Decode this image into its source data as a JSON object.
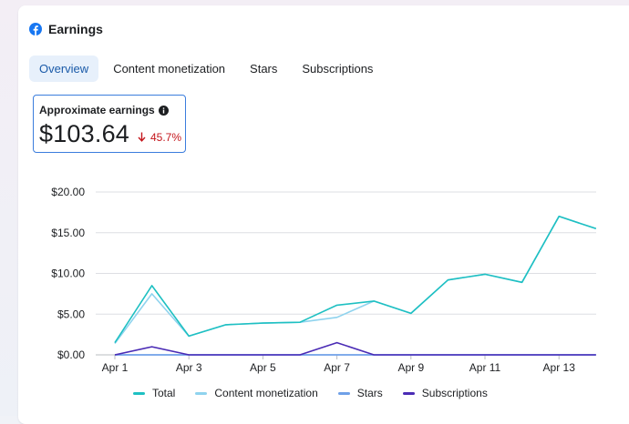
{
  "header": {
    "title": "Earnings",
    "icon": "facebook-logo-icon"
  },
  "tabs": [
    {
      "label": "Overview",
      "active": true
    },
    {
      "label": "Content monetization",
      "active": false
    },
    {
      "label": "Stars",
      "active": false
    },
    {
      "label": "Subscriptions",
      "active": false
    }
  ],
  "metric": {
    "label": "Approximate earnings",
    "info_icon": "info-icon",
    "value": "$103.64",
    "change": "45.7%",
    "change_direction": "down",
    "change_icon": "arrow-down-icon"
  },
  "colors": {
    "brand": "#1877f2",
    "tab_active_bg": "#e7f0fb",
    "tab_active_text": "#1a5aa8",
    "metric_border": "#3b7ddd",
    "negative": "#c4161c",
    "total": "#1ec0c2",
    "content_monetization": "#8fd3ee",
    "stars": "#6fa0e8",
    "subscriptions": "#4a2bb5",
    "grid": "#dddfe3"
  },
  "chart_data": {
    "type": "line",
    "title": "",
    "xlabel": "",
    "ylabel": "",
    "x": [
      "Apr 1",
      "Apr 2",
      "Apr 3",
      "Apr 4",
      "Apr 5",
      "Apr 6",
      "Apr 7",
      "Apr 8",
      "Apr 9",
      "Apr 10",
      "Apr 11",
      "Apr 12",
      "Apr 13",
      "Apr 14"
    ],
    "x_tick_labels": [
      "Apr 1",
      "Apr 3",
      "Apr 5",
      "Apr 7",
      "Apr 9",
      "Apr 11",
      "Apr 13"
    ],
    "y_ticks": [
      0,
      5,
      10,
      15,
      20
    ],
    "y_tick_labels": [
      "$0.00",
      "$5.00",
      "$10.00",
      "$15.00",
      "$20.00"
    ],
    "ylim": [
      0,
      20
    ],
    "grid": true,
    "legend_position": "bottom",
    "series": [
      {
        "name": "Total",
        "color_key": "total",
        "values": [
          1.5,
          8.5,
          2.3,
          3.7,
          3.9,
          4.0,
          6.1,
          6.6,
          5.1,
          9.2,
          9.9,
          8.9,
          17.0,
          15.5
        ]
      },
      {
        "name": "Content monetization",
        "color_key": "content_monetization",
        "values": [
          1.4,
          7.5,
          2.3,
          3.7,
          3.9,
          4.0,
          4.6,
          6.6,
          5.1,
          9.2,
          9.9,
          8.9,
          17.0,
          15.5
        ]
      },
      {
        "name": "Stars",
        "color_key": "stars",
        "values": [
          0,
          0,
          0,
          0,
          0,
          0,
          0,
          0,
          0,
          0,
          0,
          0,
          0,
          0
        ]
      },
      {
        "name": "Subscriptions",
        "color_key": "subscriptions",
        "values": [
          0,
          1.0,
          0,
          0,
          0,
          0,
          1.5,
          0,
          0,
          0,
          0,
          0,
          0,
          0
        ]
      }
    ]
  }
}
